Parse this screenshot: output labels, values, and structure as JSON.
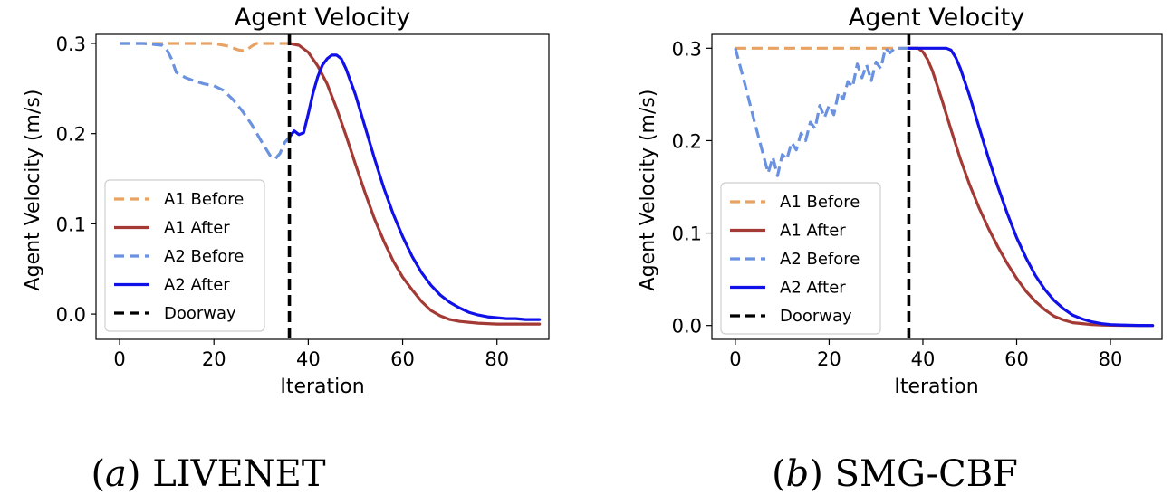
{
  "charts": [
    {
      "id": "a",
      "caption_letter": "a",
      "caption_method": "LIVENET",
      "chart_data": {
        "type": "line",
        "title": "Agent Velocity",
        "xlabel": "Iteration",
        "ylabel": "Agent Velocity (m/s)",
        "xlim": [
          -5,
          91
        ],
        "ylim": [
          -0.028,
          0.31
        ],
        "xticks": [
          0,
          20,
          40,
          60,
          80
        ],
        "yticks": [
          0.0,
          0.1,
          0.2,
          0.3
        ],
        "ytick_labels": [
          "0.0",
          "0.1",
          "0.2",
          "0.3"
        ],
        "doorway_x": 36,
        "legend_position": "lower-left",
        "series": [
          {
            "name": "A1 Before",
            "color": "#e8a264",
            "style": "dashed",
            "x": [
              0,
              10,
              20,
              23,
              25,
              26,
              27,
              28,
              29,
              30,
              36
            ],
            "y": [
              0.3,
              0.3,
              0.3,
              0.297,
              0.293,
              0.292,
              0.293,
              0.297,
              0.3,
              0.3,
              0.3
            ]
          },
          {
            "name": "A1 After",
            "color": "#a33a35",
            "style": "solid",
            "x": [
              36,
              38,
              40,
              42,
              44,
              46,
              48,
              50,
              52,
              54,
              56,
              58,
              60,
              62,
              64,
              66,
              68,
              70,
              72,
              74,
              76,
              78,
              80,
              84,
              89
            ],
            "y": [
              0.3,
              0.298,
              0.29,
              0.275,
              0.255,
              0.228,
              0.198,
              0.166,
              0.135,
              0.106,
              0.081,
              0.059,
              0.041,
              0.027,
              0.014,
              0.004,
              -0.002,
              -0.006,
              -0.008,
              -0.009,
              -0.01,
              -0.0105,
              -0.011,
              -0.011,
              -0.011
            ]
          },
          {
            "name": "A2 Before",
            "color": "#6a92e0",
            "style": "dashed",
            "x": [
              0,
              5,
              9,
              10,
              11,
              12,
              14,
              16,
              18,
              20,
              22,
              24,
              26,
              28,
              30,
              32,
              33,
              34,
              35,
              36
            ],
            "y": [
              0.3,
              0.3,
              0.298,
              0.293,
              0.283,
              0.268,
              0.262,
              0.258,
              0.255,
              0.253,
              0.248,
              0.238,
              0.225,
              0.21,
              0.192,
              0.175,
              0.172,
              0.178,
              0.19,
              0.196
            ]
          },
          {
            "name": "A2 After",
            "color": "#1010e8",
            "style": "solid",
            "x": [
              36,
              37,
              38,
              39,
              40,
              41,
              42,
              43,
              44,
              45,
              46,
              47,
              48,
              50,
              52,
              54,
              56,
              58,
              60,
              62,
              64,
              66,
              68,
              70,
              72,
              74,
              76,
              78,
              80,
              82,
              84,
              86,
              89
            ],
            "y": [
              0.196,
              0.203,
              0.199,
              0.201,
              0.222,
              0.245,
              0.263,
              0.276,
              0.283,
              0.287,
              0.287,
              0.283,
              0.272,
              0.243,
              0.208,
              0.173,
              0.14,
              0.111,
              0.086,
              0.064,
              0.046,
              0.032,
              0.021,
              0.013,
              0.007,
              0.002,
              -0.001,
              -0.003,
              -0.004,
              -0.005,
              -0.005,
              -0.006,
              -0.006
            ]
          }
        ]
      }
    },
    {
      "id": "b",
      "caption_letter": "b",
      "caption_method": "SMG-CBF",
      "chart_data": {
        "type": "line",
        "title": "Agent Velocity",
        "xlabel": "Iteration",
        "ylabel": "Agent Velocity (m/s)",
        "xlim": [
          -5,
          91
        ],
        "ylim": [
          -0.015,
          0.315
        ],
        "xticks": [
          0,
          20,
          40,
          60,
          80
        ],
        "yticks": [
          0.0,
          0.1,
          0.2,
          0.3
        ],
        "ytick_labels": [
          "0.0",
          "0.1",
          "0.2",
          "0.3"
        ],
        "doorway_x": 37,
        "legend_position": "lower-left",
        "series": [
          {
            "name": "A1 Before",
            "color": "#e8a264",
            "style": "dashed",
            "x": [
              0,
              37
            ],
            "y": [
              0.3,
              0.3
            ]
          },
          {
            "name": "A1 After",
            "color": "#a33a35",
            "style": "solid",
            "x": [
              37,
              39,
              40,
              41,
              42,
              44,
              46,
              48,
              50,
              52,
              54,
              56,
              58,
              60,
              62,
              64,
              66,
              68,
              70,
              72,
              74,
              76,
              78,
              80,
              84,
              89
            ],
            "y": [
              0.3,
              0.3,
              0.296,
              0.288,
              0.276,
              0.245,
              0.212,
              0.18,
              0.152,
              0.127,
              0.105,
              0.085,
              0.067,
              0.051,
              0.037,
              0.026,
              0.017,
              0.01,
              0.006,
              0.003,
              0.002,
              0.001,
              0.0005,
              0.0003,
              0.0001,
              0.0
            ]
          },
          {
            "name": "A2 Before",
            "color": "#6a92e0",
            "style": "dashed",
            "x": [
              0,
              2,
              4,
              6,
              7,
              8,
              9,
              10,
              11,
              12,
              13,
              14,
              15,
              16,
              17,
              18,
              19,
              20,
              21,
              22,
              23,
              24,
              25,
              26,
              27,
              28,
              29,
              30,
              31,
              32,
              33,
              34,
              35,
              36,
              37
            ],
            "y": [
              0.3,
              0.262,
              0.222,
              0.184,
              0.165,
              0.182,
              0.162,
              0.185,
              0.18,
              0.198,
              0.19,
              0.208,
              0.2,
              0.22,
              0.213,
              0.238,
              0.225,
              0.238,
              0.228,
              0.252,
              0.245,
              0.264,
              0.258,
              0.283,
              0.268,
              0.282,
              0.265,
              0.285,
              0.278,
              0.3,
              0.295,
              0.3,
              0.3,
              0.3,
              0.3
            ]
          },
          {
            "name": "A2 After",
            "color": "#1010e8",
            "style": "solid",
            "x": [
              37,
              45,
              46,
              47,
              48,
              50,
              52,
              54,
              56,
              58,
              60,
              62,
              64,
              66,
              68,
              70,
              72,
              74,
              76,
              78,
              80,
              82,
              84,
              86,
              89
            ],
            "y": [
              0.3,
              0.3,
              0.298,
              0.29,
              0.278,
              0.248,
              0.214,
              0.181,
              0.15,
              0.121,
              0.095,
              0.073,
              0.054,
              0.039,
              0.027,
              0.018,
              0.011,
              0.007,
              0.004,
              0.002,
              0.001,
              0.0006,
              0.0003,
              0.0001,
              0.0
            ]
          }
        ]
      }
    }
  ]
}
